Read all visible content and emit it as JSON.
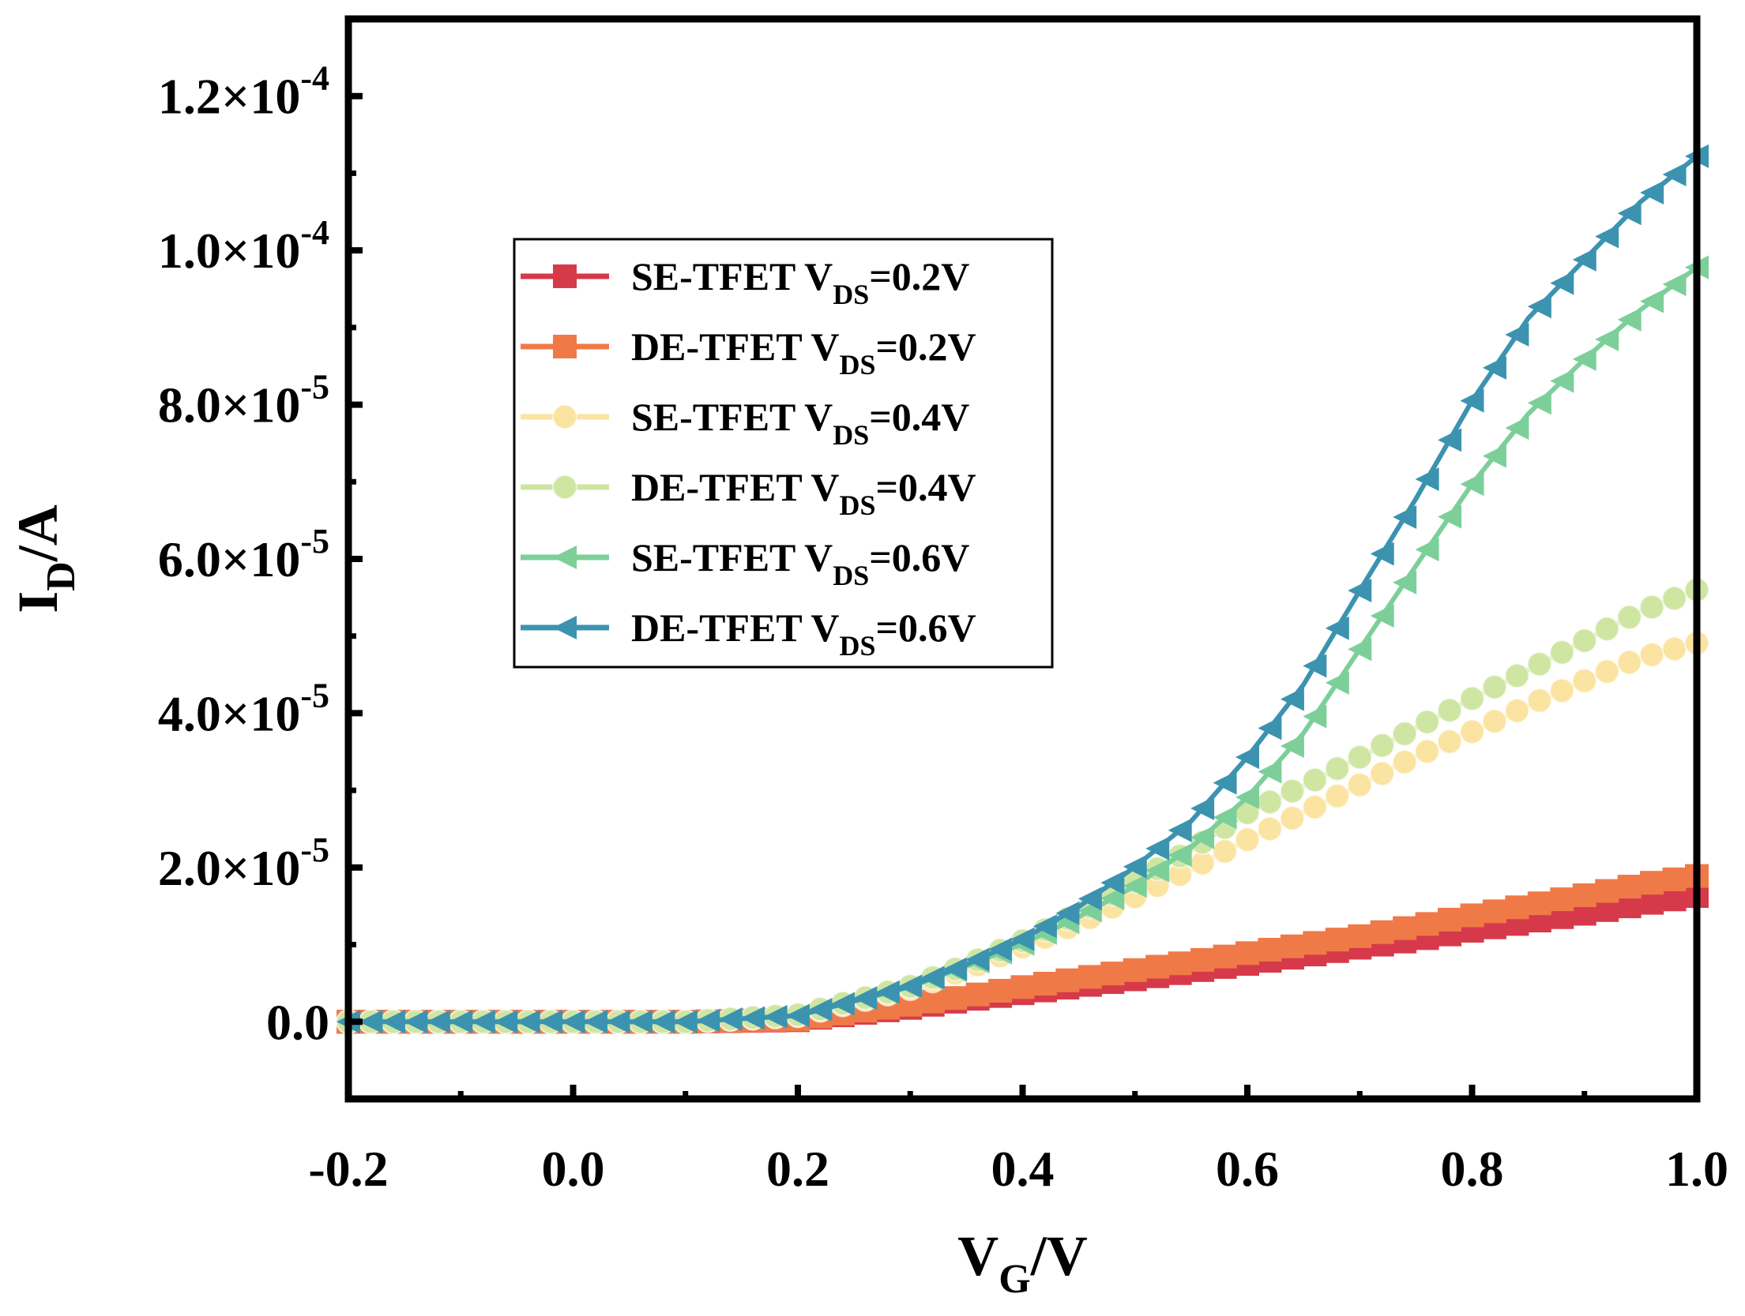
{
  "chart_data": {
    "type": "line",
    "xlabel": {
      "main": "V",
      "sub": "G",
      "tail": "/V"
    },
    "ylabel": {
      "main": "I",
      "sub": "D",
      "tail": "/A"
    },
    "xlim": [
      -0.2,
      1.0
    ],
    "ylim": [
      -1e-05,
      0.00013
    ],
    "x_ticks": [
      {
        "value": -0.2,
        "label": "-0.2"
      },
      {
        "value": 0.0,
        "label": "0.0"
      },
      {
        "value": 0.2,
        "label": "0.2"
      },
      {
        "value": 0.4,
        "label": "0.4"
      },
      {
        "value": 0.6,
        "label": "0.6"
      },
      {
        "value": 0.8,
        "label": "0.8"
      },
      {
        "value": 1.0,
        "label": "1.0"
      }
    ],
    "y_ticks": [
      {
        "value": 0.0,
        "mant": "0.0",
        "exp": ""
      },
      {
        "value": 2e-05,
        "mant": "2.0×10",
        "exp": "-5"
      },
      {
        "value": 4e-05,
        "mant": "4.0×10",
        "exp": "-5"
      },
      {
        "value": 6e-05,
        "mant": "6.0×10",
        "exp": "-5"
      },
      {
        "value": 8e-05,
        "mant": "8.0×10",
        "exp": "-5"
      },
      {
        "value": 0.0001,
        "mant": "1.0×10",
        "exp": "-4"
      },
      {
        "value": 0.00012,
        "mant": "1.2×10",
        "exp": "-4"
      }
    ],
    "legend_position": "upper-left",
    "x": [
      -0.2,
      0.0,
      0.1,
      0.2,
      0.3,
      0.35,
      0.4,
      0.45,
      0.5,
      0.55,
      0.6,
      0.65,
      0.7,
      0.75,
      0.8,
      0.85,
      0.9,
      0.95,
      1.0
    ],
    "series": [
      {
        "name": "SE-TFET  V",
        "sub": "DS",
        "suffix": "=0.2V",
        "color": "#d63a4a",
        "marker": "square",
        "values": [
          0,
          0,
          0,
          2e-07,
          1.8e-06,
          2.8e-06,
          3.7e-06,
          4.6e-06,
          5.5e-06,
          6.5e-06,
          7.5e-06,
          8.5e-06,
          9.6e-06,
          1.06e-05,
          1.18e-05,
          1.29e-05,
          1.4e-05,
          1.52e-05,
          1.63e-05
        ]
      },
      {
        "name": "DE-TFET  V",
        "sub": "DS",
        "suffix": "=0.2V",
        "color": "#f07a47",
        "marker": "square",
        "values": [
          0,
          0,
          0,
          3e-07,
          2.2e-06,
          3.3e-06,
          4.5e-06,
          5.6e-06,
          6.7e-06,
          7.8e-06,
          8.9e-06,
          1e-05,
          1.11e-05,
          1.24e-05,
          1.38e-05,
          1.51e-05,
          1.64e-05,
          1.78e-05,
          1.89e-05
        ]
      },
      {
        "name": "SE-TFET  V",
        "sub": "DS",
        "suffix": "=0.4V",
        "color": "#fbe3a1",
        "marker": "circle",
        "values": [
          0,
          0,
          0,
          8e-07,
          4.3e-06,
          6.8e-06,
          9.7e-06,
          1.28e-05,
          1.62e-05,
          1.98e-05,
          2.36e-05,
          2.71e-05,
          3.07e-05,
          3.44e-05,
          3.76e-05,
          4.1e-05,
          4.42e-05,
          4.72e-05,
          4.91e-05
        ]
      },
      {
        "name": "DE-TFET  V",
        "sub": "DS",
        "suffix": "=0.4V",
        "color": "#cfe6a3",
        "marker": "circle",
        "values": [
          0,
          0,
          0,
          9e-07,
          4.6e-06,
          7.4e-06,
          1.05e-05,
          1.41e-05,
          1.82e-05,
          2.23e-05,
          2.71e-05,
          3.06e-05,
          3.43e-05,
          3.81e-05,
          4.19e-05,
          4.56e-05,
          4.94e-05,
          5.32e-05,
          5.6e-05
        ]
      },
      {
        "name": "SE-TFET  V",
        "sub": "DS",
        "suffix": "=0.6V",
        "color": "#7dcf9a",
        "marker": "triangle-left",
        "values": [
          0,
          0,
          0,
          8e-07,
          4.5e-06,
          7.2e-06,
          1.01e-05,
          1.36e-05,
          1.76e-05,
          2.26e-05,
          2.91e-05,
          3.74e-05,
          4.83e-05,
          5.91e-05,
          6.97e-05,
          7.88e-05,
          8.59e-05,
          9.23e-05,
          9.78e-05
        ]
      },
      {
        "name": "DE-TFET  V",
        "sub": "DS",
        "suffix": "=0.6V",
        "color": "#3b93b0",
        "marker": "triangle-left",
        "values": [
          0,
          0,
          0,
          8e-07,
          4.6e-06,
          7.4e-06,
          1.07e-05,
          1.49e-05,
          2.01e-05,
          2.6e-05,
          3.43e-05,
          4.37e-05,
          5.59e-05,
          6.78e-05,
          8.05e-05,
          9.12e-05,
          9.88e-05,
          0.0001063,
          0.0001122
        ]
      }
    ]
  }
}
